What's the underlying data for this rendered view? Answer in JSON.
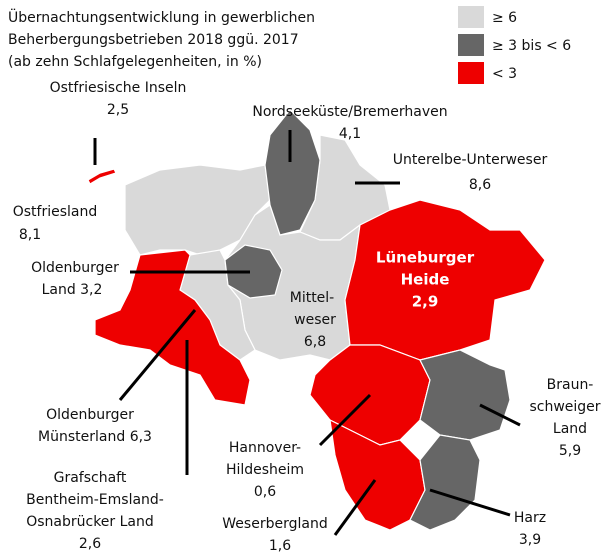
{
  "title": [
    "Übernachtungsentwicklung in gewerblichen",
    "Beherbergungsbetrieben 2018 ggü. 2017",
    "(ab zehn Schlafgelegenheiten, in %)"
  ],
  "legend": [
    {
      "label": "≥ 6",
      "color": "#d9d9d9"
    },
    {
      "label": "≥ 3 bis < 6",
      "color": "#666666"
    },
    {
      "label": "< 3",
      "color": "#ee0000"
    }
  ],
  "regions": [
    {
      "lines": [
        "Ostfriesische Inseln",
        "2,5"
      ],
      "category": 2
    },
    {
      "lines": [
        "Nordseeküste/Bremerhaven",
        "4,1"
      ],
      "category": 1
    },
    {
      "lines": [
        "Unterelbe-Unterweser",
        "8,6"
      ],
      "category": 0
    },
    {
      "lines": [
        "Ostfriesland",
        "8,1"
      ],
      "category": 0
    },
    {
      "lines": [
        "Oldenburger",
        "Land 3,2"
      ],
      "category": 1
    },
    {
      "lines": [
        "Mittel-",
        "weser",
        "6,8"
      ],
      "category": 0
    },
    {
      "lines": [
        "Lüneburger",
        "Heide",
        "2,9"
      ],
      "category": 2
    },
    {
      "lines": [
        "Oldenburger",
        "Münsterland 6,3"
      ],
      "category": 0
    },
    {
      "lines": [
        "Grafschaft",
        "Bentheim-Emsland-",
        "Osnabrücker Land",
        "2,6"
      ],
      "category": 2
    },
    {
      "lines": [
        "Hannover-",
        "Hildesheim",
        "0,6"
      ],
      "category": 2
    },
    {
      "lines": [
        "Braun-",
        "schweiger",
        "Land",
        "5,9"
      ],
      "category": 1
    },
    {
      "lines": [
        "Weserbergland",
        "1,6"
      ],
      "category": 2
    },
    {
      "lines": [
        "Harz",
        "3,9"
      ],
      "category": 1
    }
  ]
}
